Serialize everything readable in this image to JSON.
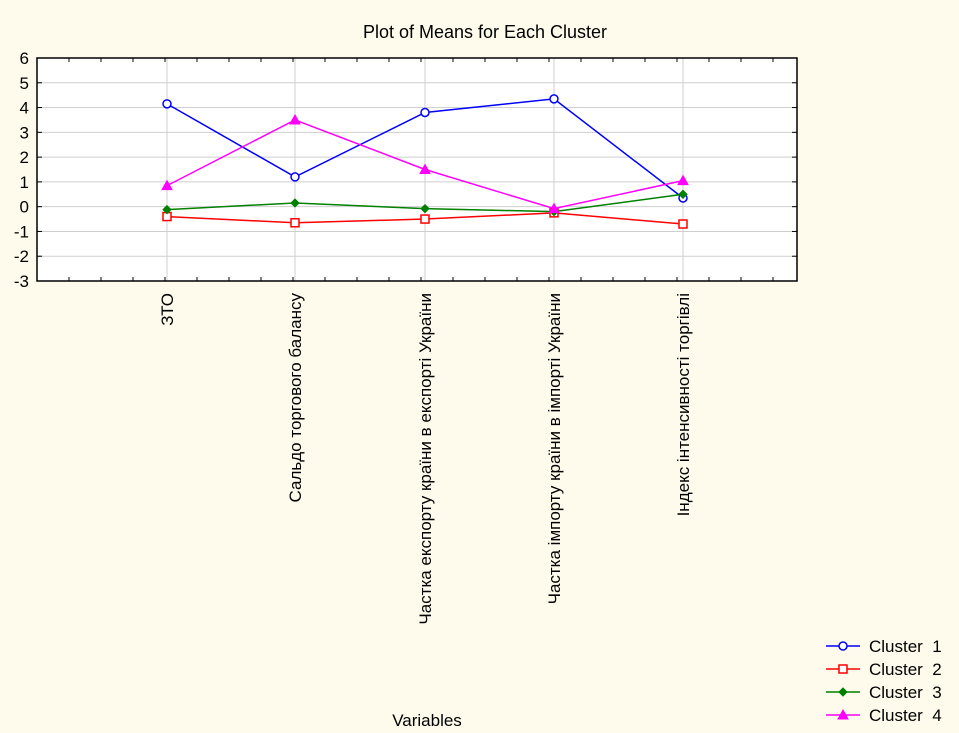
{
  "chart_data": {
    "type": "line",
    "title": "Plot of Means for Each Cluster",
    "xlabel": "Variables",
    "ylabel": "",
    "ylim": [
      -3,
      6
    ],
    "yticks": [
      -3,
      -2,
      -1,
      0,
      1,
      2,
      3,
      4,
      5,
      6
    ],
    "grid": true,
    "legend_position": "bottom-right",
    "categories": [
      "ЗТО",
      "Сальдо торгового балансу",
      "Частка експорту країни в експорті України",
      "Частка імпорту країни в імпорті України",
      "Індекс інтенсивності торгівлі"
    ],
    "series": [
      {
        "name": "Cluster  1",
        "color": "#0000ff",
        "marker": "circle",
        "values": [
          4.15,
          1.2,
          3.8,
          4.35,
          0.35
        ]
      },
      {
        "name": "Cluster  2",
        "color": "#ff0000",
        "marker": "square",
        "values": [
          -0.4,
          -0.65,
          -0.5,
          -0.25,
          -0.7
        ]
      },
      {
        "name": "Cluster  3",
        "color": "#008000",
        "marker": "diamond",
        "values": [
          -0.12,
          0.15,
          -0.08,
          -0.2,
          0.5
        ]
      },
      {
        "name": "Cluster  4",
        "color": "#ff00ff",
        "marker": "triangle",
        "values": [
          0.85,
          3.5,
          1.5,
          -0.08,
          1.05
        ]
      }
    ]
  }
}
